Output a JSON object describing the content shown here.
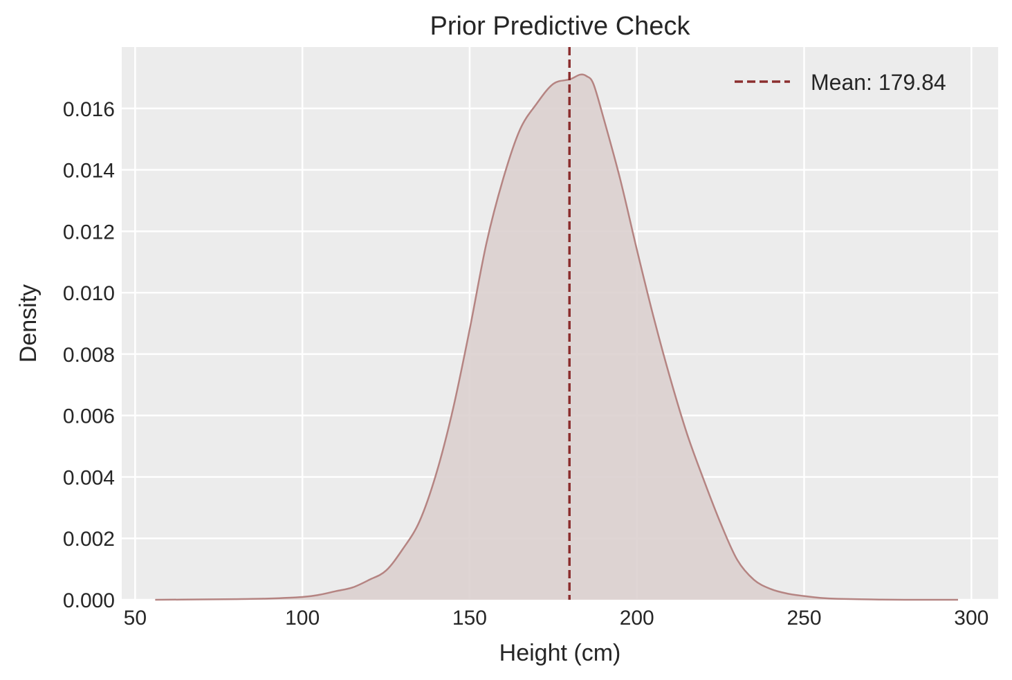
{
  "chart_data": {
    "type": "area",
    "title": "Prior Predictive Check",
    "xlabel": "Height (cm)",
    "ylabel": "Density",
    "xlim": [
      46,
      308
    ],
    "ylim": [
      0,
      0.018
    ],
    "xticks": [
      50,
      100,
      150,
      200,
      250,
      300
    ],
    "yticks": [
      0.0,
      0.002,
      0.004,
      0.006,
      0.008,
      0.01,
      0.012,
      0.014,
      0.016
    ],
    "x_tick_labels": [
      "50",
      "100",
      "150",
      "200",
      "250",
      "300"
    ],
    "y_tick_labels": [
      "0.000",
      "0.002",
      "0.004",
      "0.006",
      "0.008",
      "0.010",
      "0.012",
      "0.014",
      "0.016"
    ],
    "grid": true,
    "legend_position": "top-right",
    "series": [
      {
        "values_x": [
          56,
          70,
          80,
          90,
          100,
          105,
          110,
          115,
          120,
          125,
          130,
          135,
          140,
          145,
          150,
          155,
          160,
          165,
          170,
          175,
          180,
          183,
          185,
          187,
          190,
          195,
          200,
          205,
          210,
          215,
          220,
          225,
          230,
          235,
          240,
          245,
          250,
          255,
          260,
          270,
          280,
          296
        ],
        "values_y": [
          0.0,
          1e-05,
          2e-05,
          4e-05,
          9e-05,
          0.00016,
          0.00028,
          0.0004,
          0.00065,
          0.00095,
          0.00165,
          0.00255,
          0.0041,
          0.0062,
          0.0088,
          0.0116,
          0.0137,
          0.0153,
          0.01615,
          0.0168,
          0.01695,
          0.0171,
          0.01705,
          0.0168,
          0.0157,
          0.0137,
          0.0114,
          0.0092,
          0.0072,
          0.0054,
          0.0039,
          0.0025,
          0.0013,
          0.00065,
          0.00035,
          0.0002,
          0.00012,
          6e-05,
          3e-05,
          1e-05,
          0.0,
          0.0
        ]
      }
    ],
    "mean_line": {
      "x": 179.84,
      "label": "Mean: 179.84"
    },
    "colors": {
      "fill": "#dcd0cf",
      "curve": "#b58482",
      "mean_line": "#8b2e2e",
      "plot_bg": "#ececec",
      "grid": "#ffffff"
    }
  }
}
